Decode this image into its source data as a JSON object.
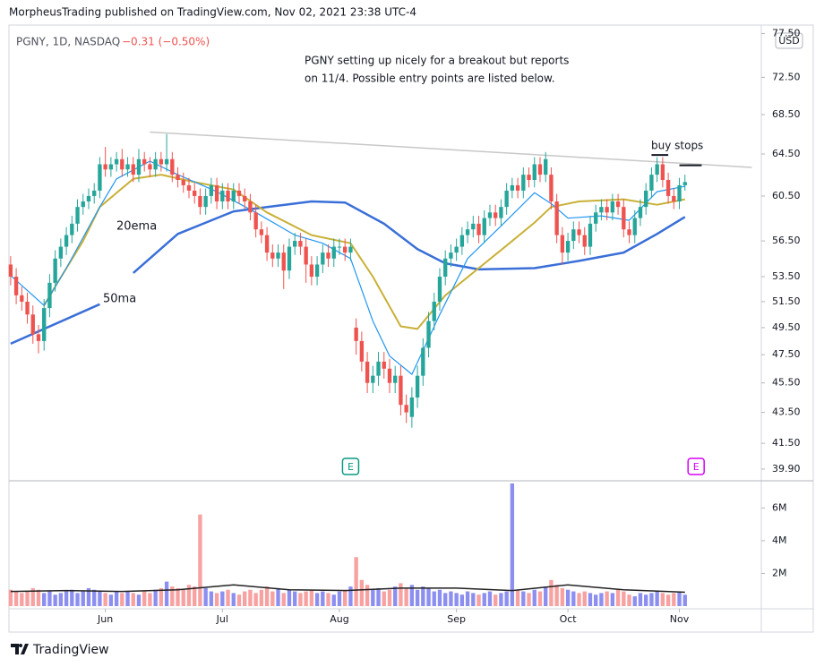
{
  "header": {
    "text": "MorpheusTrading published on TradingView.com, Nov 02, 2021 23:38 UTC-4"
  },
  "footer": {
    "brand": "TradingView"
  },
  "chart_data": {
    "type": "candlestick",
    "symbol": "PGNY, 1D, NASDAQ",
    "change_label": "−0.31 (−0.50%)",
    "currency": "USD",
    "annotation": [
      "PGNY setting up nicely for a breakout but reports",
      "on 11/4.  Possible entry points are listed below."
    ],
    "log_scale": true,
    "xlim": [
      -0.3,
      134.7
    ],
    "xticks": [
      {
        "value": 17,
        "label": "Jun"
      },
      {
        "value": 38,
        "label": "Jul"
      },
      {
        "value": 59,
        "label": "Aug"
      },
      {
        "value": 80,
        "label": "Sep"
      },
      {
        "value": 100,
        "label": "Oct"
      },
      {
        "value": 120,
        "label": "Nov"
      }
    ],
    "ylim": [
      39.3,
      78.3
    ],
    "yticks": [
      {
        "value": 77.5,
        "label": "77.50"
      },
      {
        "value": 72.5,
        "label": "72.50"
      },
      {
        "value": 68.5,
        "label": "68.50"
      },
      {
        "value": 64.5,
        "label": "64.50"
      },
      {
        "value": 60.5,
        "label": "60.50"
      },
      {
        "value": 56.5,
        "label": "56.50"
      },
      {
        "value": 53.5,
        "label": "53.50"
      },
      {
        "value": 51.5,
        "label": "51.50"
      },
      {
        "value": 49.5,
        "label": "49.50"
      },
      {
        "value": 47.5,
        "label": "47.50"
      },
      {
        "value": 45.5,
        "label": "45.50"
      },
      {
        "value": 43.5,
        "label": "43.50"
      },
      {
        "value": 41.5,
        "label": "41.50"
      },
      {
        "value": 39.9,
        "label": "39.90"
      }
    ],
    "up_color": "#26a69a",
    "down_color": "#ef5350",
    "open": [
      54.5,
      53.5,
      52,
      51.5,
      50.5,
      49,
      48.5,
      51,
      53,
      55,
      56,
      57,
      58,
      59.5,
      60,
      60.5,
      61,
      63.5,
      63,
      63.5,
      64,
      63,
      63.5,
      62.5,
      64,
      63.5,
      63,
      64,
      63.5,
      64,
      62.5,
      62,
      61.5,
      61,
      60.5,
      59.5,
      60.5,
      61.5,
      60,
      61,
      60,
      61,
      60.5,
      60,
      59,
      57.5,
      57,
      55.5,
      55,
      55.5,
      54,
      56,
      56.5,
      56,
      54.5,
      53.5,
      54.5,
      55.5,
      55,
      56,
      56,
      55.5,
      49.5,
      48.5,
      47,
      45.5,
      46,
      47,
      46.5,
      45.5,
      46,
      44,
      43.2,
      44.5,
      46,
      48,
      50,
      51.5,
      53.5,
      55,
      55.5,
      56,
      57,
      57.5,
      58,
      57,
      58.5,
      59,
      58.5,
      59.5,
      61,
      61.5,
      61,
      62.5,
      62,
      63.5,
      62.5,
      62.5,
      60,
      57,
      55.5,
      56.5,
      57.5,
      57,
      56,
      58,
      59,
      59.5,
      59,
      60,
      59.5,
      57.5,
      57,
      58.5,
      59.5,
      61,
      62.5,
      63.5,
      62,
      60.5,
      60,
      61.5
    ],
    "high": [
      55.2,
      54.2,
      52.7,
      52.2,
      51.2,
      49.7,
      51.7,
      53.7,
      55.7,
      56.7,
      57.7,
      58.7,
      60.2,
      60.7,
      61.2,
      61.7,
      64.2,
      65.2,
      64.2,
      64.7,
      65,
      64.2,
      64.2,
      65,
      64.7,
      64.2,
      64.7,
      64.7,
      66.5,
      64.7,
      63.2,
      62.7,
      62.2,
      61.7,
      61.2,
      61.2,
      62.2,
      62.2,
      61.7,
      61.7,
      61.7,
      61.7,
      61.2,
      60.7,
      59.7,
      58.2,
      57.7,
      56.2,
      56.2,
      56.2,
      56.7,
      57.2,
      57.2,
      56.7,
      55.2,
      55.2,
      56.2,
      56.2,
      56.7,
      56.7,
      56.7,
      56.7,
      50.2,
      49.2,
      47.7,
      46.7,
      47.7,
      47.7,
      47.2,
      46.7,
      46.7,
      44.7,
      45.2,
      46.7,
      48.7,
      50.7,
      52.2,
      54.2,
      55.7,
      56.2,
      56.7,
      57.7,
      58.2,
      58.7,
      58.7,
      59.2,
      59.7,
      59.7,
      60.2,
      61.7,
      62.2,
      62.2,
      63.2,
      63.2,
      64.2,
      64.2,
      64.7,
      63.2,
      60.7,
      57.7,
      57.2,
      58.2,
      58.2,
      57.7,
      58.7,
      59.7,
      60.2,
      60.2,
      60.7,
      60.7,
      60.2,
      58.2,
      59.2,
      60.2,
      61.7,
      63.2,
      64.2,
      64.2,
      62.7,
      61.2,
      62.2,
      62.5
    ],
    "low": [
      52.8,
      51.3,
      50.8,
      49.8,
      48.3,
      47.6,
      47.8,
      50.3,
      52.3,
      54.3,
      55.3,
      56.3,
      57.3,
      58.8,
      59.3,
      59.8,
      60.3,
      62.3,
      62.3,
      62.8,
      62.3,
      62.3,
      61.8,
      61.8,
      62.8,
      62.3,
      62.3,
      62.8,
      62.8,
      61.8,
      61.3,
      60.8,
      60.3,
      59.8,
      58.8,
      58.8,
      59.8,
      59.3,
      59.3,
      59.3,
      59.3,
      59.8,
      59.3,
      58.3,
      56.8,
      56.3,
      54.8,
      54.3,
      54.3,
      52.5,
      53.3,
      55.3,
      55.3,
      53,
      52.8,
      52.8,
      53.8,
      54.3,
      54.3,
      55.3,
      54.8,
      54.8,
      47.5,
      46.3,
      44.8,
      44.8,
      45.3,
      45.8,
      44.8,
      44.8,
      43.3,
      42.8,
      42.5,
      43.8,
      45.3,
      47.3,
      49.3,
      50.8,
      52.8,
      54.3,
      54.8,
      55.3,
      56.3,
      56.8,
      56.3,
      56.3,
      57.8,
      57.8,
      57.8,
      58.8,
      60.3,
      60.3,
      60.3,
      61.3,
      61.3,
      61.8,
      61.8,
      59.3,
      56.3,
      54.5,
      54.8,
      55.8,
      56.3,
      55.3,
      55.3,
      57.3,
      58.3,
      58.3,
      58.3,
      58.8,
      56.8,
      56.3,
      56.3,
      57.8,
      58.8,
      60.3,
      61.8,
      61.3,
      59.8,
      59.3,
      59.3,
      61
    ],
    "close": [
      53.5,
      52,
      51.5,
      50.5,
      49,
      48.5,
      51,
      53,
      55,
      56,
      57,
      58,
      59.5,
      60,
      60.5,
      61,
      63.5,
      63,
      63.5,
      64,
      63,
      63.5,
      62.5,
      64,
      63.5,
      63,
      64,
      63.5,
      64,
      62.5,
      62,
      61.5,
      61,
      60.5,
      59.5,
      60.5,
      61.5,
      60,
      61,
      60,
      61,
      60.5,
      60,
      59,
      57.5,
      57,
      55.5,
      55,
      55.5,
      54,
      56,
      56.5,
      56,
      54.5,
      53.5,
      54.5,
      55.5,
      55,
      56,
      56,
      55.5,
      56,
      48.5,
      47,
      45.5,
      46,
      47,
      46.5,
      45.5,
      46,
      44,
      43.5,
      44.5,
      46,
      48,
      50,
      51.5,
      53.5,
      55,
      55.5,
      56,
      57,
      57.5,
      58,
      57,
      58.5,
      59,
      58.5,
      59.5,
      61,
      61.5,
      61,
      62.5,
      62,
      63.5,
      62.5,
      64,
      60,
      57,
      55.5,
      56.5,
      57.5,
      57,
      56,
      58,
      59,
      59.5,
      59,
      60,
      59.5,
      57.5,
      57,
      58.5,
      59.5,
      61,
      62.5,
      63.5,
      62,
      60.5,
      60,
      61.5,
      61.8
    ],
    "indicators": [
      {
        "name": "50ma",
        "color": "#3a6fd8",
        "width": 2.5,
        "x": [
          0,
          16,
          19,
          22,
          30,
          40,
          46,
          54,
          60,
          67,
          73,
          78,
          84,
          94,
          102,
          110,
          116,
          121
        ],
        "values": [
          48.3,
          51.3,
          null,
          53.8,
          57.1,
          59.1,
          59.5,
          60.0,
          59.9,
          58.0,
          55.8,
          54.6,
          54.1,
          54.2,
          54.8,
          55.5,
          57.1,
          58.6
        ]
      },
      {
        "name": "20ema",
        "color": "#c9b037",
        "width": 2,
        "x": [
          6,
          8,
          13,
          16,
          22,
          27,
          33,
          40,
          46,
          54,
          61,
          65,
          70,
          73,
          78,
          84,
          89,
          94,
          97,
          102,
          110,
          116,
          121
        ],
        "values": [
          51.2,
          52.7,
          56.5,
          59.5,
          62.1,
          62.5,
          61.8,
          61.1,
          59.0,
          57.0,
          56.3,
          53.5,
          49.6,
          49.4,
          52.0,
          54.2,
          56.1,
          58.1,
          59.5,
          60.0,
          60.2,
          59.7,
          60.2
        ]
      },
      {
        "color": "#2196f3",
        "width": 1.2,
        "x": [
          0,
          6,
          10,
          16,
          19,
          25,
          30,
          37,
          44,
          51,
          56,
          61,
          65,
          68,
          72,
          77,
          82,
          88,
          94,
          97,
          100,
          106,
          111,
          116,
          121
        ],
        "values": [
          53.6,
          51.2,
          54.2,
          59.5,
          62.1,
          63.8,
          62.5,
          60.9,
          59.0,
          57.0,
          56.3,
          55.0,
          50.0,
          47.4,
          46.1,
          50.5,
          55.0,
          57.8,
          60.8,
          59.8,
          58.5,
          58.7,
          58.3,
          60.9,
          61.4
        ]
      }
    ],
    "trendline": {
      "color": "#c8c8c8",
      "x": [
        25,
        133
      ],
      "values": [
        66.7,
        63.2
      ]
    },
    "buy_stops": {
      "label": "buy stops",
      "color": "#131722",
      "lines": [
        {
          "x": [
            115,
            118
          ],
          "value": 64.4
        },
        {
          "x": [
            120,
            124
          ],
          "value": 63.4
        }
      ]
    },
    "events": [
      {
        "x": 61,
        "label": "E",
        "color": "#089981"
      },
      {
        "x": 123,
        "label": "E",
        "color": "#d500f9"
      }
    ],
    "volume": {
      "ylim": [
        0,
        7.5
      ],
      "yticks": [
        {
          "value": 2,
          "label": "2M"
        },
        {
          "value": 4,
          "label": "4M"
        },
        {
          "value": 6,
          "label": "6M"
        }
      ],
      "up_color": "#8c8ff0",
      "down_color": "#f7a1a1",
      "values": [
        1.0,
        0.9,
        0.8,
        0.9,
        1.1,
        1.0,
        0.8,
        0.9,
        0.7,
        0.8,
        0.9,
        1.0,
        0.8,
        0.9,
        1.1,
        1.0,
        0.9,
        0.8,
        0.7,
        0.9,
        0.8,
        0.9,
        0.8,
        0.7,
        0.9,
        0.8,
        1.0,
        1.1,
        1.5,
        1.2,
        1.1,
        1.0,
        1.3,
        1.2,
        5.6,
        1.1,
        0.9,
        0.8,
        0.9,
        1.0,
        0.8,
        0.7,
        0.9,
        1.0,
        0.8,
        1.0,
        1.2,
        0.9,
        1.1,
        0.8,
        1.0,
        0.9,
        0.8,
        0.9,
        1.0,
        0.8,
        0.9,
        0.8,
        0.7,
        0.9,
        1.0,
        1.2,
        3.0,
        1.6,
        1.3,
        1.0,
        1.1,
        0.9,
        1.0,
        1.2,
        1.4,
        1.1,
        1.3,
        1.0,
        1.2,
        1.1,
        0.9,
        1.0,
        0.8,
        0.9,
        0.8,
        0.7,
        0.9,
        0.8,
        0.7,
        0.8,
        0.9,
        0.7,
        0.8,
        0.9,
        7.5,
        1.0,
        0.9,
        0.8,
        1.0,
        0.9,
        1.2,
        1.6,
        1.3,
        1.1,
        1.0,
        0.9,
        0.8,
        0.9,
        0.8,
        0.7,
        0.8,
        0.9,
        0.8,
        1.0,
        0.9,
        0.7,
        0.6,
        0.8,
        0.7,
        0.8,
        0.9,
        0.8,
        0.7,
        0.8,
        0.9,
        0.7
      ],
      "ma": {
        "color": "#222222",
        "x": [
          0,
          10,
          20,
          30,
          40,
          50,
          60,
          70,
          80,
          90,
          100,
          110,
          121
        ],
        "values": [
          0.9,
          0.95,
          0.9,
          1.0,
          1.3,
          1.0,
          0.95,
          1.1,
          1.1,
          0.95,
          1.3,
          1.0,
          0.85
        ]
      }
    }
  }
}
